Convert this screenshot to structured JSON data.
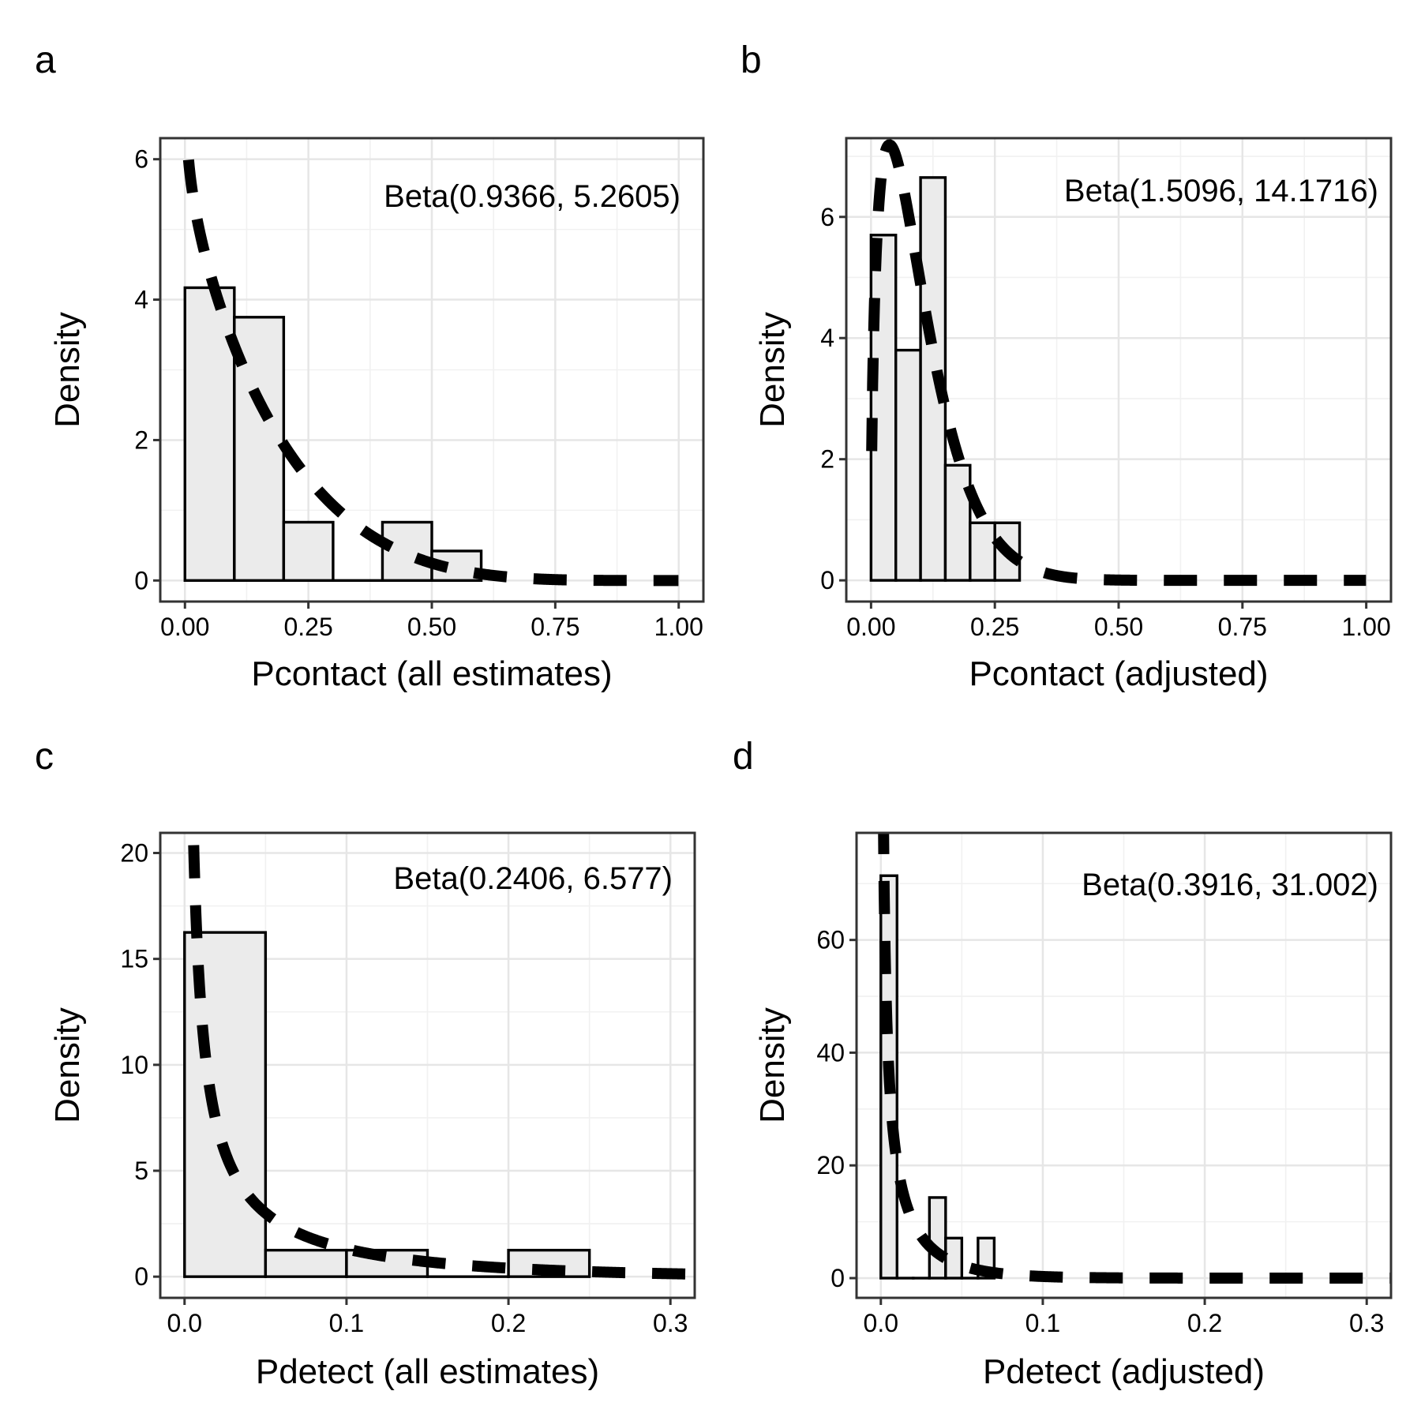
{
  "chart_data": [
    {
      "type": "bar",
      "panel_tag": "a",
      "xlabel": "Pcontact (all estimates)",
      "ylabel": "Density",
      "annotation": "Beta(0.9366, 5.2605)",
      "x_ticks": [
        "0.00",
        "0.25",
        "0.50",
        "0.75",
        "1.00"
      ],
      "y_ticks": [
        "0",
        "2",
        "4",
        "6"
      ],
      "xlim": [
        -0.05,
        1.05
      ],
      "ylim": [
        -0.3,
        6.3
      ],
      "bins": [
        {
          "x0": 0.0,
          "x1": 0.1,
          "density": 4.17
        },
        {
          "x0": 0.1,
          "x1": 0.2,
          "density": 3.75
        },
        {
          "x0": 0.2,
          "x1": 0.3,
          "density": 0.83
        },
        {
          "x0": 0.3,
          "x1": 0.4,
          "density": 0.0
        },
        {
          "x0": 0.4,
          "x1": 0.5,
          "density": 0.83
        },
        {
          "x0": 0.5,
          "x1": 0.6,
          "density": 0.42
        }
      ],
      "beta": {
        "alpha": 0.9366,
        "beta": 5.2605
      },
      "grid": true
    },
    {
      "type": "bar",
      "panel_tag": "b",
      "xlabel": "Pcontact (adjusted)",
      "ylabel": "Density",
      "annotation": "Beta(1.5096, 14.1716)",
      "x_ticks": [
        "0.00",
        "0.25",
        "0.50",
        "0.75",
        "1.00"
      ],
      "y_ticks": [
        "0",
        "2",
        "4",
        "6"
      ],
      "xlim": [
        -0.05,
        1.05
      ],
      "ylim": [
        -0.35,
        7.3
      ],
      "bins": [
        {
          "x0": 0.0,
          "x1": 0.05,
          "density": 5.7
        },
        {
          "x0": 0.05,
          "x1": 0.1,
          "density": 3.8
        },
        {
          "x0": 0.1,
          "x1": 0.15,
          "density": 6.65
        },
        {
          "x0": 0.15,
          "x1": 0.2,
          "density": 1.9
        },
        {
          "x0": 0.2,
          "x1": 0.25,
          "density": 0.95
        },
        {
          "x0": 0.25,
          "x1": 0.3,
          "density": 0.95
        }
      ],
      "beta": {
        "alpha": 1.5096,
        "beta": 14.1716
      },
      "grid": true
    },
    {
      "type": "bar",
      "panel_tag": "c",
      "xlabel": "Pdetect (all estimates)",
      "ylabel": "Density",
      "annotation": "Beta(0.2406, 6.577)",
      "x_ticks": [
        "0.0",
        "0.1",
        "0.2",
        "0.3"
      ],
      "y_ticks": [
        "0",
        "5",
        "10",
        "15",
        "20"
      ],
      "xlim": [
        -0.015,
        0.315
      ],
      "ylim": [
        -1.0,
        20.95
      ],
      "bins": [
        {
          "x0": 0.0,
          "x1": 0.05,
          "density": 16.25
        },
        {
          "x0": 0.05,
          "x1": 0.1,
          "density": 1.25
        },
        {
          "x0": 0.1,
          "x1": 0.15,
          "density": 1.25
        },
        {
          "x0": 0.15,
          "x1": 0.2,
          "density": 0.0
        },
        {
          "x0": 0.2,
          "x1": 0.25,
          "density": 1.25
        }
      ],
      "beta": {
        "alpha": 0.2406,
        "beta": 6.577
      },
      "grid": true
    },
    {
      "type": "bar",
      "panel_tag": "d",
      "xlabel": "Pdetect (adjusted)",
      "ylabel": "Density",
      "annotation": "Beta(0.3916, 31.002)",
      "x_ticks": [
        "0.0",
        "0.1",
        "0.2",
        "0.3"
      ],
      "y_ticks": [
        "0",
        "20",
        "40",
        "60"
      ],
      "xlim": [
        -0.015,
        0.315
      ],
      "ylim": [
        -3.5,
        79
      ],
      "bins": [
        {
          "x0": 0.0,
          "x1": 0.01,
          "density": 71.4
        },
        {
          "x0": 0.01,
          "x1": 0.02,
          "density": 0.0
        },
        {
          "x0": 0.02,
          "x1": 0.03,
          "density": 0.0
        },
        {
          "x0": 0.03,
          "x1": 0.04,
          "density": 14.3
        },
        {
          "x0": 0.04,
          "x1": 0.05,
          "density": 7.1
        },
        {
          "x0": 0.05,
          "x1": 0.06,
          "density": 0.0
        },
        {
          "x0": 0.06,
          "x1": 0.07,
          "density": 7.1
        }
      ],
      "beta": {
        "alpha": 0.3916,
        "beta": 31.002
      },
      "grid": true
    }
  ]
}
